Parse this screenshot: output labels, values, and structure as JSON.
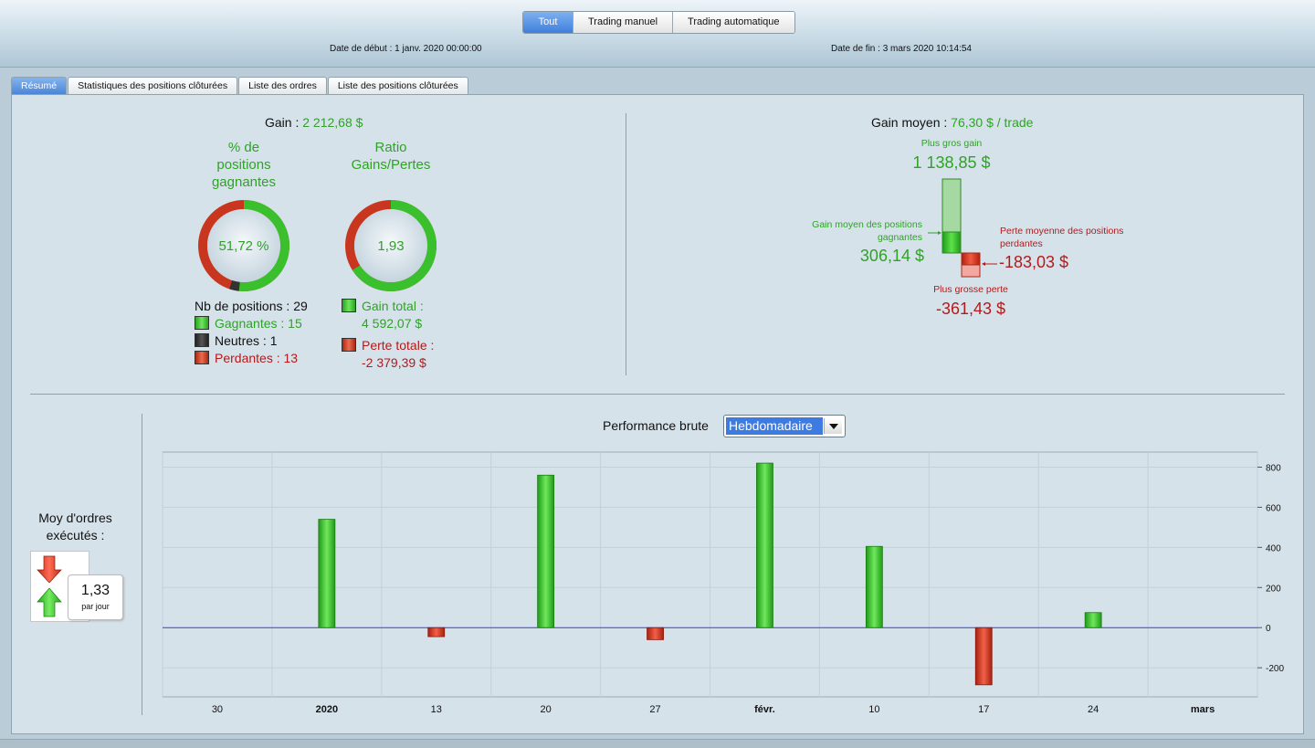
{
  "header": {
    "filters": [
      {
        "label": "Tout",
        "active": true
      },
      {
        "label": "Trading manuel",
        "active": false
      },
      {
        "label": "Trading automatique",
        "active": false
      }
    ],
    "start_date_label": "Date de début :",
    "start_date_value": "1 janv. 2020 00:00:00",
    "end_date_label": "Date de fin :",
    "end_date_value": "3 mars 2020 10:14:54"
  },
  "tabs": [
    {
      "label": "Résumé",
      "active": true
    },
    {
      "label": "Statistiques des positions clôturées",
      "active": false
    },
    {
      "label": "Liste des ordres",
      "active": false
    },
    {
      "label": "Liste des positions clôturées",
      "active": false
    }
  ],
  "summary": {
    "gain_label": "Gain :",
    "gain_value": "2 212,68 $",
    "win_pct_title": "% de positions gagnantes",
    "win_pct_value": "51,72 %",
    "win_pct_fraction": 0.5172,
    "ratio_title": "Ratio Gains/Pertes",
    "ratio_value": "1,93",
    "nb_positions_label": "Nb de positions :",
    "nb_positions_value": "29",
    "winners_label": "Gagnantes :",
    "winners_value": "15",
    "neutral_label": "Neutres :",
    "neutral_value": "1",
    "losers_label": "Perdantes :",
    "losers_value": "13",
    "total_gain_label": "Gain total :",
    "total_gain_value": "4 592,07 $",
    "total_loss_label": "Perte totale :",
    "total_loss_value": "-2 379,39 $"
  },
  "average": {
    "avg_gain_label": "Gain moyen :",
    "avg_gain_value": "76,30 $ / trade",
    "biggest_gain_label": "Plus gros gain",
    "biggest_gain_value": "1 138,85 $",
    "avg_win_label": "Gain moyen des positions gagnantes",
    "avg_win_value": "306,14 $",
    "avg_loss_label": "Perte moyenne des positions perdantes",
    "avg_loss_value": "-183,03 $",
    "biggest_loss_label": "Plus grosse perte",
    "biggest_loss_value": "-361,43 $"
  },
  "orders": {
    "title": "Moy d'ordres exécutés :",
    "value": "1,33",
    "unit": "par jour"
  },
  "performance": {
    "label": "Performance brute",
    "period_selected": "Hebdomadaire"
  },
  "colors": {
    "positive": "#2fa227",
    "negative": "#b51a1a",
    "accent": "#3e7be0"
  },
  "chart_data": {
    "type": "bar",
    "x_tick_labels": [
      "30",
      "2020",
      "13",
      "20",
      "27",
      "févr.",
      "10",
      "17",
      "24",
      "mars"
    ],
    "bold_tick_labels": [
      "2020",
      "févr.",
      "mars"
    ],
    "categories": [
      "2020",
      "13",
      "20",
      "27",
      "févr.",
      "10",
      "17",
      "24"
    ],
    "values": [
      540,
      -45,
      760,
      -60,
      820,
      405,
      -285,
      75
    ],
    "y_ticks": [
      -200,
      0,
      200,
      400,
      600,
      800
    ],
    "ylim": [
      -345,
      875
    ],
    "grid": true,
    "y_axis_side": "right"
  }
}
